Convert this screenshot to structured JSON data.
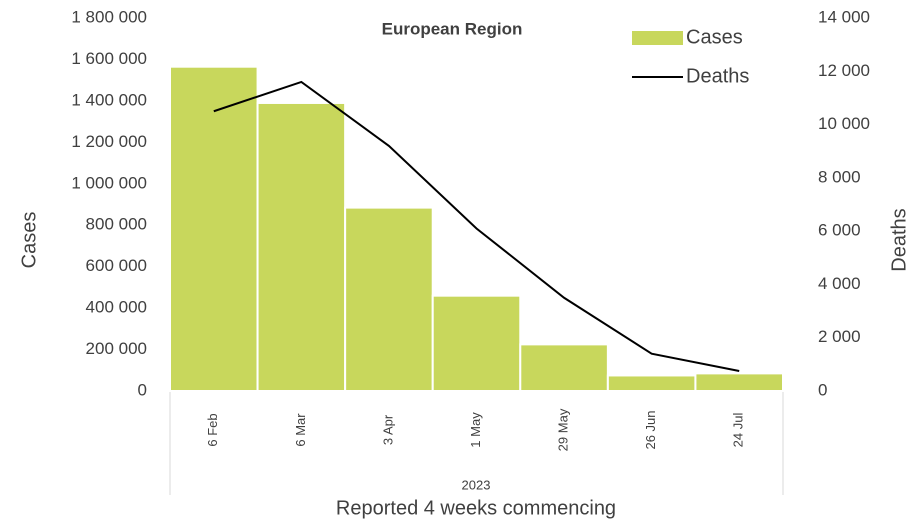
{
  "chart_data": {
    "type": "bar_line",
    "title": "European Region",
    "x_group_label": "2023",
    "x_label": "Reported 4 weeks commencing",
    "y_label": "Cases",
    "y2_label": "Deaths",
    "categories": [
      "6 Feb",
      "6 Mar",
      "3 Apr",
      "1 May",
      "29 May",
      "26 Jun",
      "24 Jul"
    ],
    "series": [
      {
        "name": "Cases",
        "type": "bar",
        "color": "#c8d75c",
        "values": [
          1565000,
          1390000,
          885000,
          460000,
          225000,
          75000,
          85000
        ]
      },
      {
        "name": "Deaths",
        "type": "line",
        "axis": "y2",
        "color": "#000000",
        "values": [
          10500,
          11600,
          9200,
          6100,
          3500,
          1400,
          750
        ]
      }
    ],
    "ylim": [
      0,
      1800000
    ],
    "yticks": [
      0,
      {
        "value": 200000,
        "label": "200 000"
      },
      {
        "value": 400000,
        "label": "400 000"
      },
      {
        "value": 600000,
        "label": "600 000"
      },
      {
        "value": 800000,
        "label": "800 000"
      },
      {
        "value": 1000000,
        "label": "1 000 000"
      },
      {
        "value": 1200000,
        "label": "1 200 000"
      },
      {
        "value": 1400000,
        "label": "1 400 000"
      },
      {
        "value": 1600000,
        "label": "1 600 000"
      },
      {
        "value": 1800000,
        "label": "1 800 000"
      }
    ],
    "y2lim": [
      0,
      14000
    ],
    "y2ticks": [
      0,
      {
        "value": 2000,
        "label": "2 000"
      },
      {
        "value": 4000,
        "label": "4 000"
      },
      {
        "value": 6000,
        "label": "6 000"
      },
      {
        "value": 8000,
        "label": "8 000"
      },
      {
        "value": 10000,
        "label": "10 000"
      },
      {
        "value": 12000,
        "label": "12 000"
      },
      {
        "value": 14000,
        "label": "14 000"
      }
    ],
    "grid": false,
    "legend": "top-right"
  }
}
